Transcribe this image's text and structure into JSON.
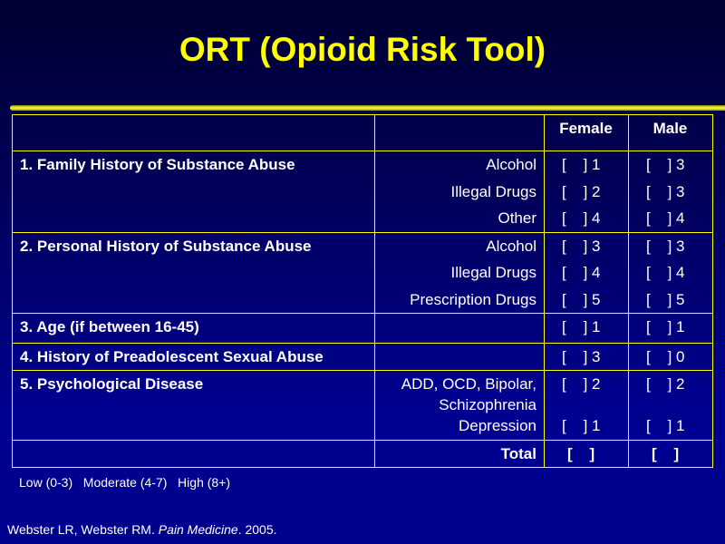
{
  "title": "ORT (Opioid Risk Tool)",
  "header": {
    "female": "Female",
    "male": "Male"
  },
  "rows": [
    {
      "label": "1. Family History of Substance Abuse",
      "items": [
        {
          "sub": "Alcohol",
          "female": "[    ] 1",
          "male": "[    ] 3"
        },
        {
          "sub": "Illegal Drugs",
          "female": "[    ] 2",
          "male": "[    ] 3"
        },
        {
          "sub": "Other",
          "female": "[    ] 4",
          "male": "[    ] 4"
        }
      ]
    },
    {
      "label": "2. Personal History of Substance Abuse",
      "items": [
        {
          "sub": "Alcohol",
          "female": "[    ] 3",
          "male": "[    ] 3"
        },
        {
          "sub": "Illegal Drugs",
          "female": "[    ] 4",
          "male": "[    ] 4"
        },
        {
          "sub": "Prescription Drugs",
          "female": "[    ] 5",
          "male": "[    ] 5"
        }
      ]
    },
    {
      "label": "3. Age (if between 16-45)",
      "items": [
        {
          "female": "[    ] 1",
          "male": "[    ] 1"
        }
      ]
    },
    {
      "label": "4. History of Preadolescent Sexual Abuse",
      "items": [
        {
          "female": "[    ] 3",
          "male": "[    ] 0"
        }
      ]
    },
    {
      "label": "5. Psychological Disease",
      "items": [
        {
          "sub": "ADD, OCD, Bipolar,",
          "female": "[    ] 2",
          "male": "[    ] 2"
        },
        {
          "sub": "Schizophrenia"
        },
        {
          "sub": "Depression",
          "female": "[    ] 1",
          "male": "[    ] 1"
        }
      ]
    }
  ],
  "total": {
    "label": "Total",
    "female": "[    ]",
    "male": "[    ]"
  },
  "legend": "Low (0-3)   Moderate (4-7)   High (8+)",
  "citation": {
    "authors": "Webster LR, Webster RM. ",
    "journal": "Pain Medicine",
    "year": ". 2005."
  }
}
